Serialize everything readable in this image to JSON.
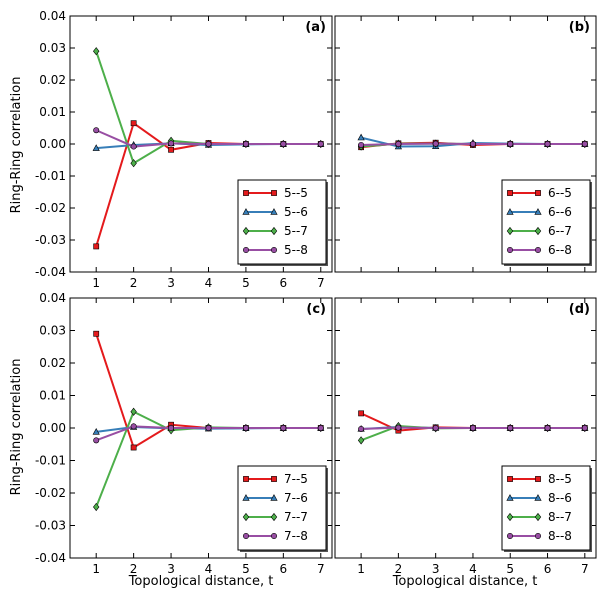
{
  "figure": {
    "ylabel": "Ring-Ring correlation",
    "xlabel": "Topological distance, t"
  },
  "colors": {
    "red": "#e41a1c",
    "blue": "#377eb8",
    "green": "#4daf4a",
    "purple": "#984ea3"
  },
  "chart_data": [
    {
      "type": "line",
      "panel": "(a)",
      "x": [
        1,
        2,
        3,
        4,
        5,
        6,
        7
      ],
      "xlim": [
        0.3,
        7.3
      ],
      "ylim": [
        -0.04,
        0.04
      ],
      "yticks": [
        "0.04",
        "0.03",
        "0.02",
        "0.01",
        "0.00",
        "-0.01",
        "-0.02",
        "-0.03",
        "-0.04"
      ],
      "xticks": [
        "1",
        "2",
        "3",
        "4",
        "5",
        "6",
        "7"
      ],
      "legend": "lower-right",
      "series": [
        {
          "name": "5--5",
          "color": "#e41a1c",
          "marker": "square",
          "values": [
            -0.032,
            0.0065,
            -0.0018,
            0.0003,
            0.0,
            0.0,
            0.0
          ]
        },
        {
          "name": "5--6",
          "color": "#377eb8",
          "marker": "triangle",
          "values": [
            -0.0013,
            -0.0003,
            0.0002,
            -0.0003,
            -0.0001,
            0.0,
            0.0
          ]
        },
        {
          "name": "5--7",
          "color": "#4daf4a",
          "marker": "diamond",
          "values": [
            0.029,
            -0.006,
            0.001,
            0.0,
            0.0,
            0.0,
            0.0
          ]
        },
        {
          "name": "5--8",
          "color": "#984ea3",
          "marker": "circle",
          "values": [
            0.0043,
            -0.0008,
            0.0002,
            0.0,
            0.0,
            0.0,
            0.0
          ]
        }
      ]
    },
    {
      "type": "line",
      "panel": "(b)",
      "x": [
        1,
        2,
        3,
        4,
        5,
        6,
        7
      ],
      "xlim": [
        0.3,
        7.3
      ],
      "ylim": [
        -0.04,
        0.04
      ],
      "yticks": [],
      "xticks": [],
      "legend": "lower-right",
      "series": [
        {
          "name": "6--5",
          "color": "#e41a1c",
          "marker": "square",
          "values": [
            -0.001,
            0.0002,
            0.0004,
            -0.0003,
            0.0,
            0.0,
            0.0
          ]
        },
        {
          "name": "6--6",
          "color": "#377eb8",
          "marker": "triangle",
          "values": [
            0.002,
            -0.0008,
            -0.0007,
            0.0003,
            0.0001,
            0.0,
            0.0
          ]
        },
        {
          "name": "6--7",
          "color": "#4daf4a",
          "marker": "diamond",
          "values": [
            -0.0008,
            0.0001,
            0.0001,
            0.0,
            0.0,
            0.0,
            0.0
          ]
        },
        {
          "name": "6--8",
          "color": "#984ea3",
          "marker": "circle",
          "values": [
            -0.0003,
            0.0,
            0.0001,
            0.0,
            0.0,
            0.0,
            0.0
          ]
        }
      ]
    },
    {
      "type": "line",
      "panel": "(c)",
      "x": [
        1,
        2,
        3,
        4,
        5,
        6,
        7
      ],
      "xlim": [
        0.3,
        7.3
      ],
      "ylim": [
        -0.04,
        0.04
      ],
      "yticks": [
        "0.04",
        "0.03",
        "0.02",
        "0.01",
        "0.00",
        "-0.01",
        "-0.02",
        "-0.03",
        "-0.04"
      ],
      "xticks": [
        "1",
        "2",
        "3",
        "4",
        "5",
        "6",
        "7"
      ],
      "legend": "lower-right",
      "series": [
        {
          "name": "7--5",
          "color": "#e41a1c",
          "marker": "square",
          "values": [
            0.029,
            -0.006,
            0.001,
            0.0,
            0.0,
            0.0,
            0.0
          ]
        },
        {
          "name": "7--6",
          "color": "#377eb8",
          "marker": "triangle",
          "values": [
            -0.0012,
            0.0003,
            -0.0001,
            -0.0002,
            -0.0001,
            0.0,
            0.0
          ]
        },
        {
          "name": "7--7",
          "color": "#4daf4a",
          "marker": "diamond",
          "values": [
            -0.0243,
            0.005,
            -0.0007,
            0.0002,
            0.0,
            0.0,
            0.0
          ]
        },
        {
          "name": "7--8",
          "color": "#984ea3",
          "marker": "circle",
          "values": [
            -0.0038,
            0.0005,
            0.0,
            0.0,
            0.0,
            0.0,
            0.0
          ]
        }
      ]
    },
    {
      "type": "line",
      "panel": "(d)",
      "x": [
        1,
        2,
        3,
        4,
        5,
        6,
        7
      ],
      "xlim": [
        0.3,
        7.3
      ],
      "ylim": [
        -0.04,
        0.04
      ],
      "yticks": [],
      "xticks": [
        "1",
        "2",
        "3",
        "4",
        "5",
        "6",
        "7"
      ],
      "legend": "lower-right",
      "series": [
        {
          "name": "8--5",
          "color": "#e41a1c",
          "marker": "square",
          "values": [
            0.0045,
            -0.0008,
            0.0002,
            0.0,
            0.0,
            0.0,
            0.0
          ]
        },
        {
          "name": "8--6",
          "color": "#377eb8",
          "marker": "triangle",
          "values": [
            -0.0003,
            0.0003,
            0.0,
            0.0,
            0.0,
            0.0,
            0.0
          ]
        },
        {
          "name": "8--7",
          "color": "#4daf4a",
          "marker": "diamond",
          "values": [
            -0.0038,
            0.0006,
            -0.0001,
            0.0,
            0.0,
            0.0,
            0.0
          ]
        },
        {
          "name": "8--8",
          "color": "#984ea3",
          "marker": "circle",
          "values": [
            -0.0003,
            0.0001,
            0.0,
            0.0,
            0.0,
            0.0,
            0.0
          ]
        }
      ]
    }
  ]
}
